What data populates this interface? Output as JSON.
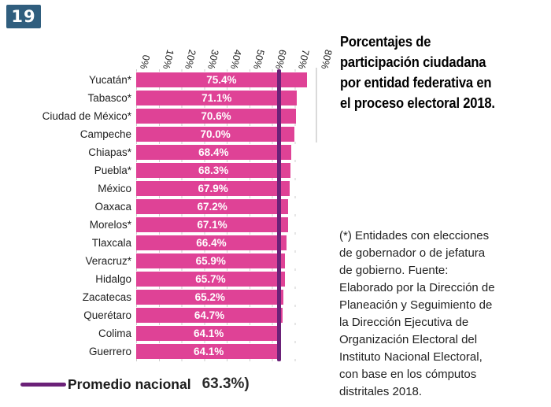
{
  "page_badge": "19",
  "title": "Porcentajes de\nparticipación ciudadana\npor entidad federativa en\nel proceso electoral 2018.",
  "footnote": "(*) Entidades con elecciones\nde gobernador o de jefatura\nde gobierno. Fuente:\nElaborado por la Dirección de\nPlaneación y Seguimiento de\nla Dirección Ejecutiva de\nOrganización Electoral del\nInstituto Nacional Electoral,\ncon base en los cómputos\ndistritales 2018.",
  "legend": {
    "label": "Promedio nacional",
    "value": "63.3%)"
  },
  "colors": {
    "bar": "#DF4296",
    "average_line": "#6B2178",
    "badge_bg": "#305E7E",
    "gridline": "#CDCDCD"
  },
  "chart_data": {
    "type": "bar",
    "orientation": "horizontal",
    "title": "Porcentajes de participación ciudadana por entidad federativa en el proceso electoral 2018.",
    "categories": [
      "Yucatán*",
      "Tabasco*",
      "Ciudad de México*",
      "Campeche",
      "Chiapas*",
      "Puebla*",
      "México",
      "Oaxaca",
      "Morelos*",
      "Tlaxcala",
      "Veracruz*",
      "Hidalgo",
      "Zacatecas",
      "Querétaro",
      "Colima",
      "Guerrero"
    ],
    "values": [
      75.4,
      71.1,
      70.6,
      70.0,
      68.4,
      68.3,
      67.9,
      67.2,
      67.1,
      66.4,
      65.9,
      65.7,
      65.2,
      64.7,
      64.1,
      64.1
    ],
    "value_labels": [
      "75.4%",
      "71.1%",
      "70.6%",
      "70.0%",
      "68.4%",
      "68.3%",
      "67.9%",
      "67.2%",
      "67.1%",
      "66.4%",
      "65.9%",
      "65.7%",
      "65.2%",
      "64.7%",
      "64.1%",
      "64.1%"
    ],
    "x_ticks": [
      "0%",
      "10%",
      "20%",
      "30%",
      "40%",
      "50%",
      "60%",
      "70%",
      "80%"
    ],
    "xlim": [
      0,
      80
    ],
    "average_line_value": 63.3,
    "average_line_label": "Promedio nacional",
    "grid": true,
    "legend_position": "bottom-left"
  }
}
